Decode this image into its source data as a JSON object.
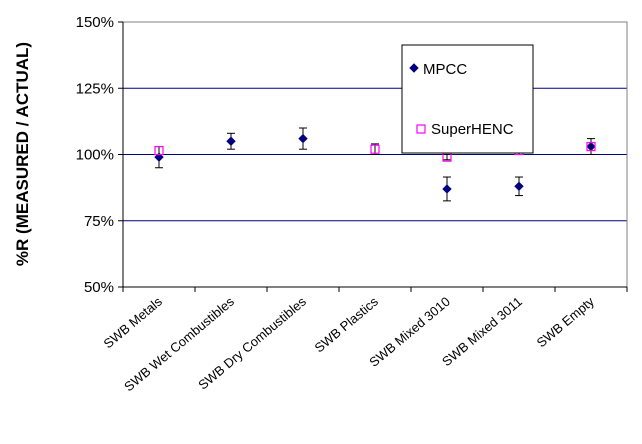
{
  "chart_data": {
    "type": "scatter",
    "title": "",
    "xlabel": "",
    "ylabel": "%R (MEASURED / ACTUAL)",
    "ylim": [
      50,
      150
    ],
    "yticks": [
      50,
      75,
      100,
      125,
      150
    ],
    "ytick_labels": [
      "50%",
      "75%",
      "100%",
      "125%",
      "150%"
    ],
    "grid": "horizontal major gridlines",
    "legend_position": "top-right",
    "categories": [
      "SWB Metals",
      "SWB Wet Combustibles",
      "SWB Dry Combustibles",
      "SWB Plastics",
      "SWB Mixed 3010",
      "SWB Mixed 3011",
      "SWB Empty"
    ],
    "series": [
      {
        "name": "MPCC",
        "marker": "diamond",
        "color": "#000080",
        "values": [
          99,
          105,
          106,
          null,
          87,
          88,
          103
        ],
        "error": [
          4,
          3,
          4,
          null,
          4.5,
          3.5,
          3
        ]
      },
      {
        "name": "SuperHENC",
        "marker": "square-open",
        "color": "#ff00ff",
        "values": [
          101.5,
          null,
          null,
          102,
          99,
          101.5,
          103
        ],
        "error": [
          1.5,
          null,
          null,
          2,
          1,
          1.5,
          1.5
        ]
      }
    ]
  }
}
